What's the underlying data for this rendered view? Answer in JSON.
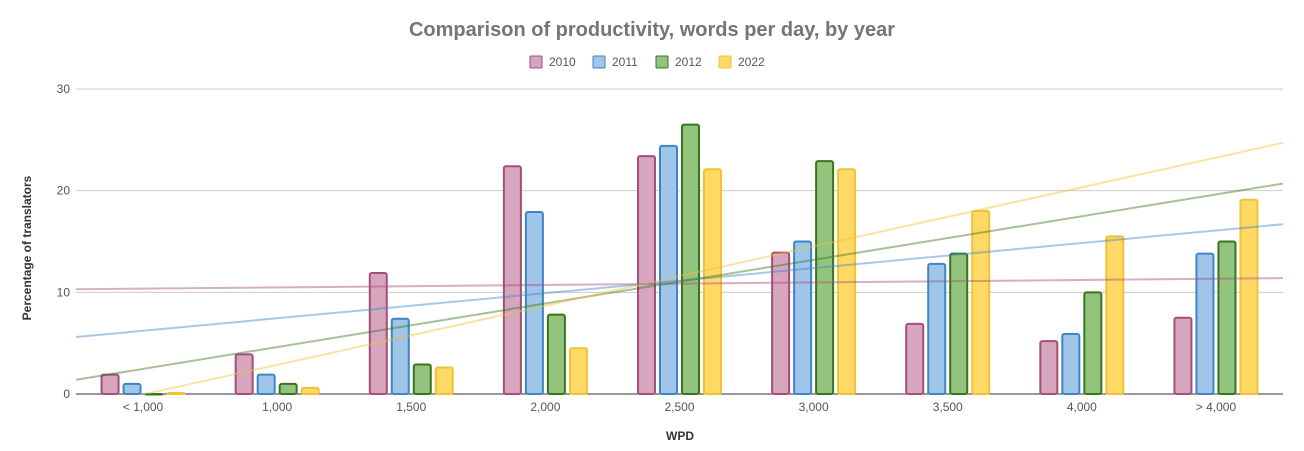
{
  "chart_data": {
    "type": "bar",
    "title": "Comparison of productivity, words per day, by year",
    "xlabel": "WPD",
    "ylabel": "Percentage of translators",
    "ylim": [
      0,
      30
    ],
    "yticks": [
      0,
      10,
      20,
      30
    ],
    "grid": true,
    "legend_position": "top",
    "trendlines": true,
    "categories": [
      "< 1,000",
      "1,000",
      "1,500",
      "2,000",
      "2,500",
      "3,000",
      "3,500",
      "4,000",
      "> 4,000"
    ],
    "series": [
      {
        "name": "2010",
        "color": "#d5a6bd",
        "stroke": "#a64d79",
        "values": [
          2.0,
          4.0,
          12.0,
          22.5,
          23.5,
          14.0,
          7.0,
          5.3,
          7.6
        ],
        "trend": [
          10.3,
          11.4
        ]
      },
      {
        "name": "2011",
        "color": "#9fc5e8",
        "stroke": "#3d85c6",
        "values": [
          1.1,
          2.0,
          7.5,
          18.0,
          24.5,
          15.1,
          12.9,
          6.0,
          13.9
        ],
        "trend": [
          5.6,
          16.7
        ]
      },
      {
        "name": "2012",
        "color": "#93c47d",
        "stroke": "#38761d",
        "values": [
          0.1,
          1.1,
          3.0,
          7.9,
          26.6,
          23.0,
          13.9,
          10.1,
          15.1
        ],
        "trend": [
          1.4,
          20.7
        ]
      },
      {
        "name": "2022",
        "color": "#ffd966",
        "stroke": "#f1c232",
        "values": [
          0.2,
          0.7,
          2.7,
          4.6,
          22.2,
          22.2,
          18.1,
          15.6,
          19.2
        ],
        "trend": [
          -1.5,
          24.7
        ]
      }
    ]
  }
}
